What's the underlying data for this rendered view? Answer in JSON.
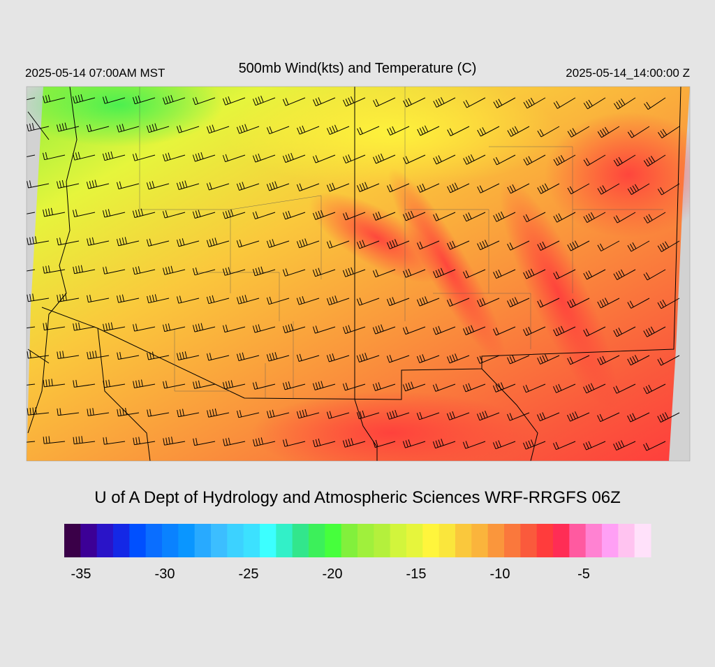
{
  "header": {
    "left": "2025-05-14 07:00AM MST",
    "title": "500mb Wind(kts) and Temperature (C)",
    "right": "2025-05-14_14:00:00 Z"
  },
  "footer": {
    "credit": "U of A Dept of Hydrology and Atmospheric Sciences WRF-RRGFS 06Z"
  },
  "colorbar": {
    "range": [
      -36,
      -1
    ],
    "ticks": [
      -35,
      -30,
      -25,
      -20,
      -15,
      -10,
      -5
    ],
    "colors": [
      "#3a0048",
      "#3c0096",
      "#2a14c8",
      "#1428e6",
      "#0050ff",
      "#0a6eff",
      "#0a82ff",
      "#0a96ff",
      "#28aaff",
      "#3cbeff",
      "#3cd2ff",
      "#3ce1ff",
      "#3cffff",
      "#32f0c8",
      "#32e68c",
      "#3cf05a",
      "#46ff3c",
      "#82f03c",
      "#a0f03c",
      "#b4f03c",
      "#d2f53c",
      "#e6f53c",
      "#fff53c",
      "#fae63c",
      "#fac83c",
      "#fab43c",
      "#fa963c",
      "#fa783c",
      "#fa5a3c",
      "#ff3c3c",
      "#ff2d55",
      "#ff5aa0",
      "#ff82d2",
      "#ffa0f5",
      "#ffc3f0",
      "#ffe1fa"
    ]
  }
}
